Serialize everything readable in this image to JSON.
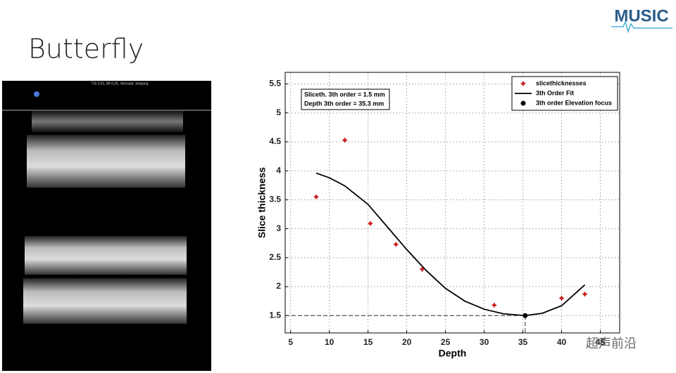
{
  "slide": {
    "title": "Butterfly",
    "logo": "MUSIC",
    "watermark": "超声前沿"
  },
  "ultrasound": {
    "header": "TIS 0,01, MI 0,26, Vascular: toegang"
  },
  "chart_data": {
    "type": "scatter",
    "xlabel": "Depth",
    "ylabel": "Slice thickness",
    "annotations": [
      "Sliceth. 3th order = 1.5 mm",
      "Depth 3th order = 35.3 mm"
    ],
    "series": [
      {
        "name": "slicethicknesses",
        "type": "scatter",
        "color": "#cc2020",
        "x": [
          8.3,
          12,
          15.3,
          18.6,
          22,
          31.3,
          40,
          43
        ],
        "values": [
          3.55,
          4.53,
          3.09,
          2.73,
          2.3,
          1.68,
          1.8,
          1.87
        ]
      },
      {
        "name": "3th Order Fit",
        "type": "line",
        "color": "#000000",
        "x": [
          8.3,
          10,
          12,
          15,
          17.5,
          20,
          22.5,
          25,
          27.5,
          30,
          32.5,
          35.3,
          37.5,
          40,
          43
        ],
        "values": [
          3.96,
          3.88,
          3.74,
          3.42,
          3.03,
          2.64,
          2.28,
          1.97,
          1.75,
          1.61,
          1.53,
          1.5,
          1.54,
          1.67,
          2.03
        ]
      },
      {
        "name": "3th order Elevation focus",
        "type": "scatter",
        "color": "#000000",
        "x": [
          35.3
        ],
        "values": [
          1.5
        ]
      }
    ],
    "xlim": [
      4.3,
      47.5
    ],
    "ylim": [
      1.2,
      5.7
    ],
    "xticks": [
      5,
      10,
      15,
      20,
      25,
      30,
      35,
      40,
      45
    ],
    "yticks": [
      1.5,
      2,
      2.5,
      3,
      3.5,
      4,
      4.5,
      5,
      5.5
    ],
    "grid": true,
    "legend": "upper right"
  }
}
